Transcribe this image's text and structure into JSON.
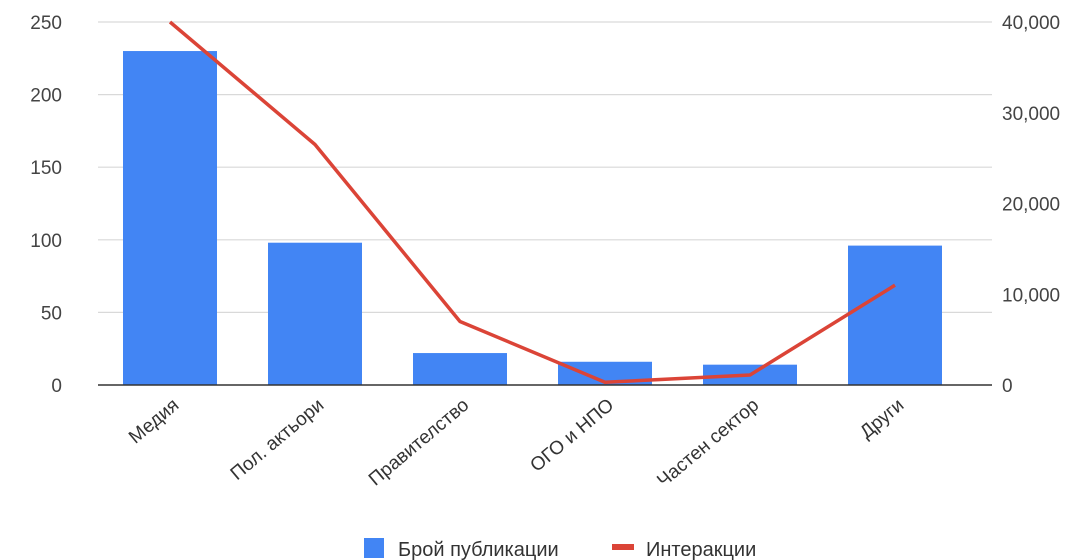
{
  "chart_data": {
    "type": "bar",
    "categories": [
      "Медия",
      "Пол. актьори",
      "Правителство",
      "ОГО и НПО",
      "Частен сектор",
      "Други"
    ],
    "series": [
      {
        "name": "Брой публикации",
        "type": "bar",
        "axis": "left",
        "color": "#4285f4",
        "values": [
          230,
          98,
          22,
          16,
          14,
          96
        ]
      },
      {
        "name": "Интеракции",
        "type": "line",
        "axis": "right",
        "color": "#db4437",
        "values": [
          40000,
          26500,
          7000,
          300,
          1100,
          11000
        ]
      }
    ],
    "y_left": {
      "lim": [
        0,
        250
      ],
      "ticks": [
        0,
        50,
        100,
        150,
        200,
        250
      ],
      "labels": [
        "0",
        "50",
        "100",
        "150",
        "200",
        "250"
      ]
    },
    "y_right": {
      "lim": [
        0,
        40000
      ],
      "ticks": [
        0,
        10000,
        20000,
        30000,
        40000
      ],
      "labels": [
        "0",
        "10,000",
        "20,000",
        "30,000",
        "40,000"
      ]
    },
    "grid": true,
    "legend": "bottom",
    "title": "",
    "xlabel": "",
    "ylabel": ""
  }
}
